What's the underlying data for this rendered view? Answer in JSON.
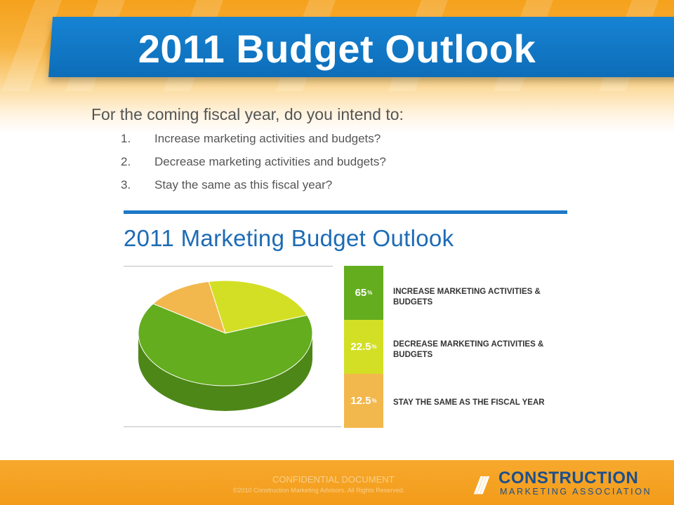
{
  "slide": {
    "title": "2011 Budget Outlook",
    "question": "For the coming fiscal year, do you intend to:",
    "options": [
      {
        "num": "1.",
        "text": "Increase marketing activities and budgets?"
      },
      {
        "num": "2.",
        "text": "Decrease marketing activities and budgets?"
      },
      {
        "num": "3.",
        "text": "Stay the same as this fiscal year?"
      }
    ]
  },
  "chart_data": {
    "type": "pie",
    "title": "2011 Marketing Budget Outlook",
    "unit": "%",
    "series": [
      {
        "label": "INCREASE MARKETING ACTIVITIES & BUDGETS",
        "value": 65,
        "display": "65",
        "color": "#63ad1e"
      },
      {
        "label": "DECREASE MARKETING ACTIVITIES & BUDGETS",
        "value": 22.5,
        "display": "22.5",
        "color": "#d3df25"
      },
      {
        "label": "STAY THE SAME AS THE FISCAL YEAR",
        "value": 12.5,
        "display": "12.5",
        "color": "#f2b84d"
      }
    ]
  },
  "footer": {
    "confidential": "CONFIDENTIAL DOCUMENT",
    "copyright": "©2010 Construction Marketing Advisors. All Rights Reserved.",
    "logo": {
      "marks": "///",
      "word1": "CONSTRUCTION",
      "word2": "MARKETING ASSOCIATION"
    }
  },
  "colors": {
    "banner": "#0d6db8",
    "accent": "#f39b1a",
    "chart_title": "#1d6bb5"
  }
}
